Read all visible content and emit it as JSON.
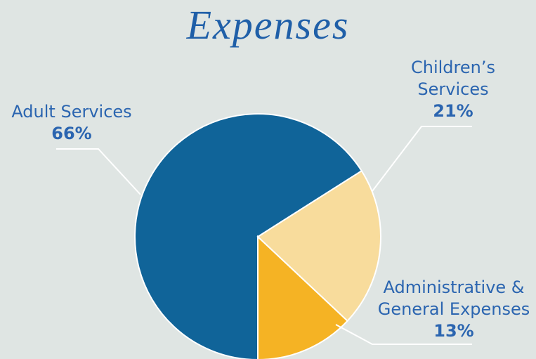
{
  "chart_data": {
    "type": "pie",
    "title": "Expenses",
    "categories": [
      "Adult Services",
      "Children’s Services",
      "Administrative & General Expenses"
    ],
    "values": [
      66,
      21,
      13
    ],
    "value_labels": [
      "66%",
      "21%",
      "13%"
    ],
    "colors": [
      "#106499",
      "#f8dc9c",
      "#f5b324"
    ]
  }
}
